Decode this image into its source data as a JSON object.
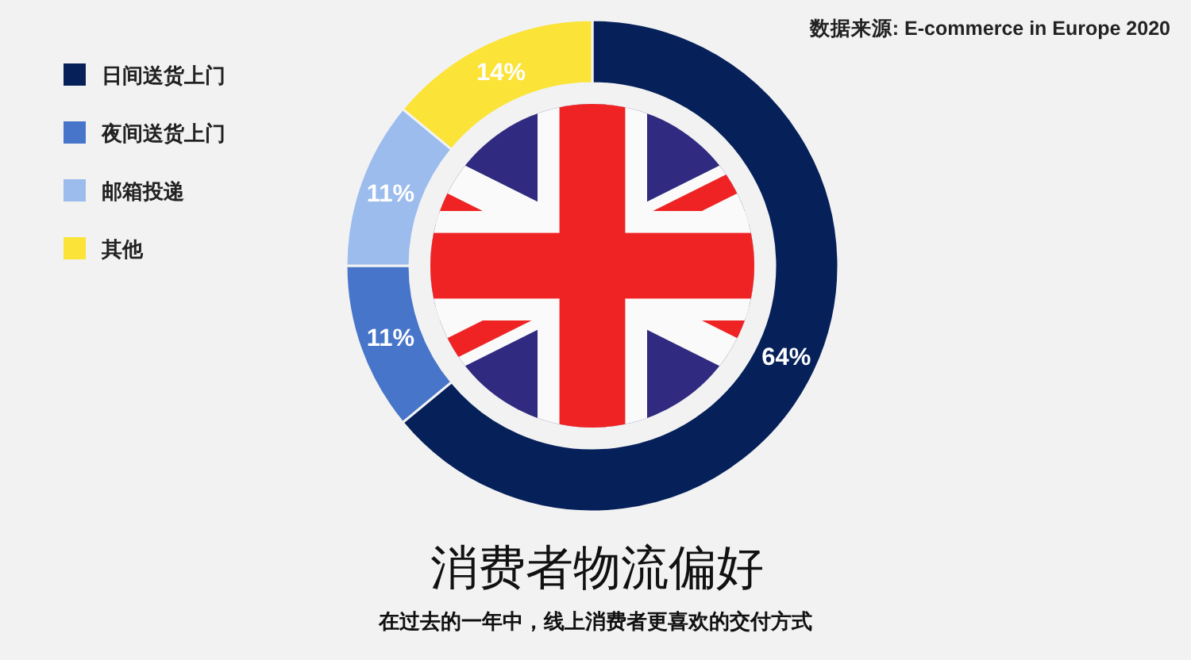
{
  "chart_data": {
    "type": "donut",
    "title": "消费者物流偏好",
    "subtitle": "在过去的一年中，线上消费者更喜欢的交付方式",
    "annotations": [
      "数据来源: E-commerce in Europe 2020"
    ],
    "categories": [
      "日间送货上门",
      "夜间送货上门",
      "邮箱投递",
      "其他"
    ],
    "values": [
      64,
      11,
      11,
      14
    ],
    "colors": [
      "#06215a",
      "#4775c9",
      "#9cbcee",
      "#fbe338"
    ],
    "value_labels": [
      "64%",
      "11%",
      "11%",
      "14%"
    ],
    "legend": "top left"
  }
}
